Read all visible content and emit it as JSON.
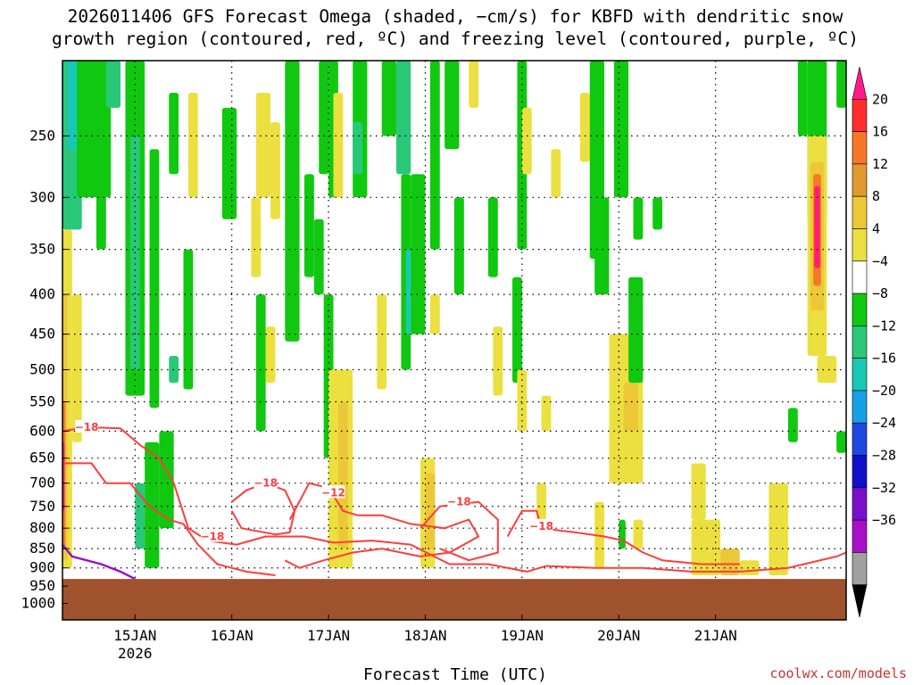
{
  "chart_data": {
    "type": "heatmap",
    "title_lines": [
      "2026011406 GFS Forecast Omega (shaded, −cm/s) for KBFD with dendritic snow",
      "growth region (contoured, red, ºC) and freezing level (contoured, purple, ºC)"
    ],
    "xlabel": "Forecast Time (UTC)",
    "credit": "coolwx.com/models",
    "x_ticks": [
      {
        "label": "15JAN",
        "sub": "2026",
        "t": 0.75
      },
      {
        "label": "16JAN",
        "sub": "",
        "t": 1.75
      },
      {
        "label": "17JAN",
        "sub": "",
        "t": 2.75
      },
      {
        "label": "18JAN",
        "sub": "",
        "t": 3.75
      },
      {
        "label": "19JAN",
        "sub": "",
        "t": 4.75
      },
      {
        "label": "20JAN",
        "sub": "",
        "t": 5.75
      },
      {
        "label": "21JAN",
        "sub": "",
        "t": 6.75
      }
    ],
    "x_range_days": [
      0,
      8.1
    ],
    "y_ticks": [
      250,
      300,
      350,
      400,
      450,
      500,
      550,
      600,
      650,
      700,
      750,
      800,
      850,
      900,
      950,
      1000
    ],
    "y_range_hpa": [
      200,
      1050
    ],
    "ground_top_hpa": 930,
    "colorbar": {
      "labels": [
        "20",
        "16",
        "12",
        "8",
        "4",
        "−4",
        "−8",
        "−12",
        "−16",
        "−20",
        "−24",
        "−28",
        "−32",
        "−36"
      ],
      "colors": [
        "#ff1a8a",
        "#ff2e2e",
        "#f5782a",
        "#e09a30",
        "#ecc838",
        "#ebe040",
        "#ffffff",
        "#10c810",
        "#28c878",
        "#18c8b4",
        "#18a0e6",
        "#1e48e0",
        "#1010c8",
        "#7810c8",
        "#a810c8",
        "#a0a0a0",
        "#000000"
      ]
    },
    "colors": {
      "ground": "#a0522d",
      "dgz_line": "#ff3c3c",
      "freezing_line": "#9b0ec8",
      "credit": "#c83232"
    },
    "shading_cells": [
      {
        "t0": 0.0,
        "t1": 0.2,
        "p0": 200,
        "p1": 330,
        "c": "#28c878"
      },
      {
        "t0": 0.05,
        "t1": 0.15,
        "p0": 200,
        "p1": 260,
        "c": "#18c8b4"
      },
      {
        "t0": 0.15,
        "t1": 0.5,
        "p0": 200,
        "p1": 300,
        "c": "#10c810"
      },
      {
        "t0": 0.45,
        "t1": 0.6,
        "p0": 200,
        "p1": 230,
        "c": "#28c878"
      },
      {
        "t0": 0.35,
        "t1": 0.45,
        "p0": 260,
        "p1": 350,
        "c": "#10c810"
      },
      {
        "t0": 0.65,
        "t1": 0.85,
        "p0": 200,
        "p1": 540,
        "c": "#10c810"
      },
      {
        "t0": 0.7,
        "t1": 0.8,
        "p0": 250,
        "p1": 500,
        "c": "#28c878"
      },
      {
        "t0": 0.9,
        "t1": 1.0,
        "p0": 260,
        "p1": 560,
        "c": "#10c810"
      },
      {
        "t0": 0.75,
        "t1": 0.85,
        "p0": 700,
        "p1": 850,
        "c": "#28c878"
      },
      {
        "t0": 0.85,
        "t1": 1.0,
        "p0": 620,
        "p1": 900,
        "c": "#10c810"
      },
      {
        "t0": 1.0,
        "t1": 1.15,
        "p0": 600,
        "p1": 800,
        "c": "#10c810"
      },
      {
        "t0": 1.1,
        "t1": 1.2,
        "p0": 220,
        "p1": 280,
        "c": "#10c810"
      },
      {
        "t0": 1.25,
        "t1": 1.35,
        "p0": 350,
        "p1": 530,
        "c": "#10c810"
      },
      {
        "t0": 1.1,
        "t1": 1.2,
        "p0": 480,
        "p1": 520,
        "c": "#28c878"
      },
      {
        "t0": 0.0,
        "t1": 0.1,
        "p0": 330,
        "p1": 900,
        "c": "#ebe040"
      },
      {
        "t0": 0.0,
        "t1": 0.05,
        "p0": 400,
        "p1": 880,
        "c": "#ecc838"
      },
      {
        "t0": 0.0,
        "t1": 0.03,
        "p0": 550,
        "p1": 850,
        "c": "#f5782a"
      },
      {
        "t0": 0.0,
        "t1": 0.02,
        "p0": 620,
        "p1": 760,
        "c": "#ff1a8a"
      },
      {
        "t0": 0.1,
        "t1": 0.2,
        "p0": 400,
        "p1": 620,
        "c": "#ebe040"
      },
      {
        "t0": 1.3,
        "t1": 1.4,
        "p0": 220,
        "p1": 300,
        "c": "#ebe040"
      },
      {
        "t0": 1.65,
        "t1": 1.8,
        "p0": 230,
        "p1": 320,
        "c": "#10c810"
      },
      {
        "t0": 2.0,
        "t1": 2.15,
        "p0": 220,
        "p1": 300,
        "c": "#ebe040"
      },
      {
        "t0": 2.15,
        "t1": 2.25,
        "p0": 240,
        "p1": 320,
        "c": "#ebe040"
      },
      {
        "t0": 1.95,
        "t1": 2.05,
        "p0": 300,
        "p1": 380,
        "c": "#ebe040"
      },
      {
        "t0": 2.0,
        "t1": 2.1,
        "p0": 400,
        "p1": 600,
        "c": "#10c810"
      },
      {
        "t0": 2.1,
        "t1": 2.2,
        "p0": 440,
        "p1": 520,
        "c": "#ebe040"
      },
      {
        "t0": 2.3,
        "t1": 2.45,
        "p0": 200,
        "p1": 460,
        "c": "#10c810"
      },
      {
        "t0": 2.5,
        "t1": 2.6,
        "p0": 280,
        "p1": 380,
        "c": "#10c810"
      },
      {
        "t0": 2.65,
        "t1": 2.75,
        "p0": 200,
        "p1": 280,
        "c": "#10c810"
      },
      {
        "t0": 2.6,
        "t1": 2.7,
        "p0": 320,
        "p1": 400,
        "c": "#10c810"
      },
      {
        "t0": 2.75,
        "t1": 2.85,
        "p0": 200,
        "p1": 300,
        "c": "#10c810"
      },
      {
        "t0": 2.7,
        "t1": 2.8,
        "p0": 400,
        "p1": 650,
        "c": "#10c810"
      },
      {
        "t0": 2.75,
        "t1": 3.0,
        "p0": 500,
        "p1": 900,
        "c": "#ebe040"
      },
      {
        "t0": 2.85,
        "t1": 2.95,
        "p0": 550,
        "p1": 850,
        "c": "#ecc838"
      },
      {
        "t0": 2.8,
        "t1": 2.9,
        "p0": 220,
        "p1": 300,
        "c": "#ebe040"
      },
      {
        "t0": 3.0,
        "t1": 3.15,
        "p0": 200,
        "p1": 300,
        "c": "#10c810"
      },
      {
        "t0": 3.0,
        "t1": 3.1,
        "p0": 240,
        "p1": 280,
        "c": "#28c878"
      },
      {
        "t0": 3.3,
        "t1": 3.45,
        "p0": 200,
        "p1": 250,
        "c": "#10c810"
      },
      {
        "t0": 3.45,
        "t1": 3.6,
        "p0": 200,
        "p1": 280,
        "c": "#28c878"
      },
      {
        "t0": 3.5,
        "t1": 3.6,
        "p0": 280,
        "p1": 500,
        "c": "#10c810"
      },
      {
        "t0": 3.55,
        "t1": 3.6,
        "p0": 350,
        "p1": 450,
        "c": "#18c8b4"
      },
      {
        "t0": 3.6,
        "t1": 3.75,
        "p0": 280,
        "p1": 450,
        "c": "#10c810"
      },
      {
        "t0": 3.25,
        "t1": 3.35,
        "p0": 400,
        "p1": 530,
        "c": "#ebe040"
      },
      {
        "t0": 3.7,
        "t1": 3.85,
        "p0": 650,
        "p1": 900,
        "c": "#ebe040"
      },
      {
        "t0": 3.75,
        "t1": 3.85,
        "p0": 680,
        "p1": 850,
        "c": "#ecc838"
      },
      {
        "t0": 3.8,
        "t1": 3.9,
        "p0": 200,
        "p1": 350,
        "c": "#10c810"
      },
      {
        "t0": 3.8,
        "t1": 3.9,
        "p0": 400,
        "p1": 450,
        "c": "#ebe040"
      },
      {
        "t0": 3.95,
        "t1": 4.1,
        "p0": 200,
        "p1": 260,
        "c": "#10c810"
      },
      {
        "t0": 4.05,
        "t1": 4.15,
        "p0": 300,
        "p1": 400,
        "c": "#10c810"
      },
      {
        "t0": 4.2,
        "t1": 4.3,
        "p0": 200,
        "p1": 230,
        "c": "#ebe040"
      },
      {
        "t0": 4.4,
        "t1": 4.5,
        "p0": 300,
        "p1": 380,
        "c": "#10c810"
      },
      {
        "t0": 4.45,
        "t1": 4.55,
        "p0": 440,
        "p1": 540,
        "c": "#ebe040"
      },
      {
        "t0": 4.7,
        "t1": 4.8,
        "p0": 200,
        "p1": 350,
        "c": "#10c810"
      },
      {
        "t0": 4.65,
        "t1": 4.75,
        "p0": 380,
        "p1": 520,
        "c": "#10c810"
      },
      {
        "t0": 4.7,
        "t1": 4.8,
        "p0": 500,
        "p1": 600,
        "c": "#ebe040"
      },
      {
        "t0": 4.75,
        "t1": 4.85,
        "p0": 230,
        "p1": 280,
        "c": "#ebe040"
      },
      {
        "t0": 4.95,
        "t1": 5.05,
        "p0": 540,
        "p1": 600,
        "c": "#ebe040"
      },
      {
        "t0": 4.9,
        "t1": 5.0,
        "p0": 700,
        "p1": 800,
        "c": "#ebe040"
      },
      {
        "t0": 5.05,
        "t1": 5.15,
        "p0": 260,
        "p1": 300,
        "c": "#ebe040"
      },
      {
        "t0": 5.35,
        "t1": 5.45,
        "p0": 220,
        "p1": 270,
        "c": "#ebe040"
      },
      {
        "t0": 5.45,
        "t1": 5.6,
        "p0": 200,
        "p1": 360,
        "c": "#10c810"
      },
      {
        "t0": 5.5,
        "t1": 5.65,
        "p0": 300,
        "p1": 400,
        "c": "#10c810"
      },
      {
        "t0": 5.5,
        "t1": 5.6,
        "p0": 740,
        "p1": 900,
        "c": "#ebe040"
      },
      {
        "t0": 5.7,
        "t1": 5.85,
        "p0": 200,
        "p1": 300,
        "c": "#10c810"
      },
      {
        "t0": 5.65,
        "t1": 6.0,
        "p0": 450,
        "p1": 700,
        "c": "#ebe040"
      },
      {
        "t0": 5.8,
        "t1": 5.95,
        "p0": 520,
        "p1": 600,
        "c": "#ecc838"
      },
      {
        "t0": 5.9,
        "t1": 6.0,
        "p0": 300,
        "p1": 340,
        "c": "#10c810"
      },
      {
        "t0": 5.9,
        "t1": 6.0,
        "p0": 780,
        "p1": 850,
        "c": "#ebe040"
      },
      {
        "t0": 5.75,
        "t1": 5.82,
        "p0": 780,
        "p1": 850,
        "c": "#10c810"
      },
      {
        "t0": 5.85,
        "t1": 6.0,
        "p0": 380,
        "p1": 520,
        "c": "#10c810"
      },
      {
        "t0": 6.1,
        "t1": 6.2,
        "p0": 300,
        "p1": 330,
        "c": "#10c810"
      },
      {
        "t0": 6.5,
        "t1": 6.65,
        "p0": 660,
        "p1": 780,
        "c": "#ebe040"
      },
      {
        "t0": 6.55,
        "t1": 6.6,
        "p0": 830,
        "p1": 880,
        "c": "#ecc838"
      },
      {
        "t0": 6.5,
        "t1": 6.8,
        "p0": 780,
        "p1": 920,
        "c": "#ebe040"
      },
      {
        "t0": 6.8,
        "t1": 7.0,
        "p0": 850,
        "p1": 920,
        "c": "#ecc838"
      },
      {
        "t0": 7.0,
        "t1": 7.2,
        "p0": 880,
        "p1": 920,
        "c": "#ebe040"
      },
      {
        "t0": 7.3,
        "t1": 7.5,
        "p0": 700,
        "p1": 920,
        "c": "#ebe040"
      },
      {
        "t0": 7.5,
        "t1": 7.6,
        "p0": 560,
        "p1": 620,
        "c": "#10c810"
      },
      {
        "t0": 7.6,
        "t1": 7.7,
        "p0": 200,
        "p1": 250,
        "c": "#10c810"
      },
      {
        "t0": 7.7,
        "t1": 7.9,
        "p0": 200,
        "p1": 320,
        "c": "#10c810"
      },
      {
        "t0": 7.7,
        "t1": 7.9,
        "p0": 250,
        "p1": 480,
        "c": "#ebe040"
      },
      {
        "t0": 7.73,
        "t1": 7.87,
        "p0": 270,
        "p1": 420,
        "c": "#ecc838"
      },
      {
        "t0": 7.76,
        "t1": 7.84,
        "p0": 280,
        "p1": 390,
        "c": "#f5782a"
      },
      {
        "t0": 7.77,
        "t1": 7.83,
        "p0": 290,
        "p1": 370,
        "c": "#ff2e2e"
      },
      {
        "t0": 7.78,
        "t1": 7.82,
        "p0": 290,
        "p1": 370,
        "c": "#ff1a8a"
      },
      {
        "t0": 7.8,
        "t1": 8.0,
        "p0": 480,
        "p1": 520,
        "c": "#ebe040"
      },
      {
        "t0": 8.0,
        "t1": 8.1,
        "p0": 600,
        "p1": 640,
        "c": "#10c810"
      },
      {
        "t0": 8.0,
        "t1": 8.1,
        "p0": 200,
        "p1": 230,
        "c": "#10c810"
      }
    ],
    "dgz_contours": [
      {
        "label": "−18",
        "label_t": 0.25,
        "label_p": 593,
        "pts": [
          [
            0,
            600
          ],
          [
            0.25,
            593
          ],
          [
            0.6,
            595
          ],
          [
            0.8,
            625
          ],
          [
            1.0,
            650
          ],
          [
            1.15,
            700
          ],
          [
            1.3,
            800
          ],
          [
            1.5,
            830
          ],
          [
            1.8,
            840
          ],
          [
            2.1,
            820
          ],
          [
            2.5,
            820
          ],
          [
            2.8,
            835
          ],
          [
            3.2,
            830
          ],
          [
            3.6,
            840
          ],
          [
            4.0,
            890
          ],
          [
            4.4,
            890
          ],
          [
            4.8,
            910
          ],
          [
            5.0,
            895
          ],
          [
            5.5,
            900
          ],
          [
            6.0,
            900
          ],
          [
            6.5,
            910
          ],
          [
            7.0,
            910
          ],
          [
            7.5,
            900
          ],
          [
            8.0,
            870
          ],
          [
            8.1,
            860
          ]
        ]
      },
      {
        "label": "−18",
        "label_t": 1.55,
        "label_p": 820,
        "pts": [
          [
            0,
            660
          ],
          [
            0.3,
            660
          ],
          [
            0.45,
            700
          ],
          [
            0.7,
            700
          ],
          [
            0.9,
            750
          ],
          [
            1.1,
            780
          ],
          [
            1.25,
            790
          ],
          [
            1.4,
            840
          ],
          [
            1.6,
            890
          ],
          [
            1.9,
            910
          ],
          [
            2.2,
            920
          ]
        ]
      },
      {
        "label": "−18",
        "label_t": 2.1,
        "label_p": 700,
        "pts": [
          [
            1.75,
            740
          ],
          [
            1.9,
            715
          ],
          [
            2.1,
            700
          ],
          [
            2.3,
            715
          ],
          [
            2.4,
            760
          ],
          [
            2.35,
            810
          ],
          [
            2.2,
            815
          ],
          [
            1.85,
            800
          ],
          [
            1.75,
            760
          ]
        ]
      },
      {
        "label": "−12",
        "label_t": 2.8,
        "label_p": 720,
        "pts": [
          [
            2.35,
            780
          ],
          [
            2.55,
            700
          ],
          [
            2.75,
            710
          ],
          [
            2.9,
            760
          ],
          [
            3.05,
            770
          ],
          [
            3.3,
            770
          ],
          [
            3.6,
            790
          ],
          [
            3.95,
            800
          ],
          [
            4.2,
            780
          ],
          [
            4.3,
            820
          ],
          [
            4.0,
            860
          ],
          [
            3.7,
            870
          ],
          [
            3.3,
            850
          ],
          [
            3.0,
            860
          ],
          [
            2.7,
            880
          ],
          [
            2.45,
            900
          ],
          [
            2.3,
            880
          ]
        ]
      },
      {
        "label": "−18",
        "label_t": 4.1,
        "label_p": 740,
        "pts": [
          [
            3.7,
            800
          ],
          [
            3.9,
            750
          ],
          [
            4.3,
            740
          ],
          [
            4.5,
            780
          ],
          [
            4.5,
            860
          ],
          [
            4.2,
            880
          ],
          [
            3.9,
            850
          ]
        ]
      },
      {
        "label": "−18",
        "label_t": 4.95,
        "label_p": 795,
        "pts": [
          [
            4.6,
            820
          ],
          [
            4.75,
            760
          ],
          [
            4.9,
            760
          ],
          [
            4.95,
            800
          ],
          [
            5.3,
            810
          ],
          [
            5.6,
            820
          ],
          [
            5.8,
            830
          ],
          [
            6.0,
            860
          ],
          [
            6.2,
            880
          ],
          [
            6.6,
            890
          ],
          [
            7.0,
            890
          ]
        ]
      }
    ],
    "freezing_contour": {
      "pts": [
        [
          0,
          840
        ],
        [
          0.1,
          870
        ],
        [
          0.4,
          890
        ],
        [
          0.6,
          910
        ],
        [
          0.75,
          930
        ]
      ]
    }
  }
}
